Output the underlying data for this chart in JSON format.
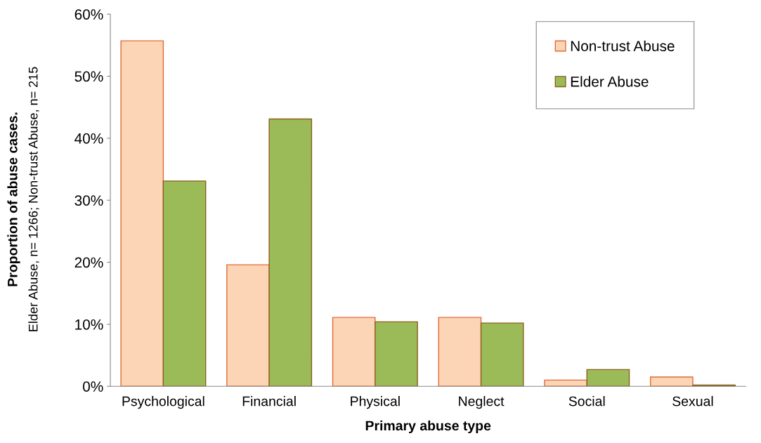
{
  "chart_data": {
    "type": "bar",
    "xlabel": "Primary abuse type",
    "ylabel": "Proportion of abuse cases.\nElder Abuse, n= 1266; Non-trust Abuse, n= 215",
    "categories": [
      "Psychological",
      "Financial",
      "Physical",
      "Neglect",
      "Social",
      "Sexual"
    ],
    "series": [
      {
        "name": "Non-trust Abuse",
        "color": "#fbd5b5",
        "values": [
          55.7,
          19.6,
          11.1,
          11.1,
          1.0,
          1.5
        ]
      },
      {
        "name": "Elder Abuse",
        "color": "#9bbb59",
        "values": [
          33.1,
          43.1,
          10.4,
          10.2,
          2.7,
          0.2
        ]
      }
    ],
    "ylim": [
      0,
      60
    ],
    "yticks": [
      {
        "value": 0,
        "label": "0%"
      },
      {
        "value": 10,
        "label": "10%"
      },
      {
        "value": 20,
        "label": "20%"
      },
      {
        "value": 30,
        "label": "30%"
      },
      {
        "value": 40,
        "label": "40%"
      },
      {
        "value": 50,
        "label": "50%"
      },
      {
        "value": 60,
        "label": "60%"
      }
    ],
    "legend": "top right",
    "grid": false
  }
}
